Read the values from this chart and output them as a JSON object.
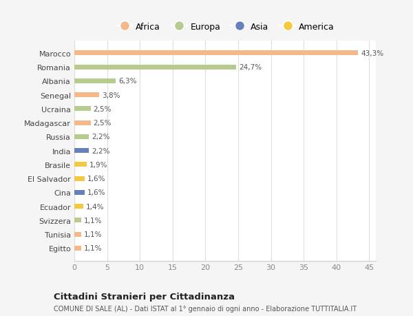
{
  "categories": [
    "Egitto",
    "Tunisia",
    "Svizzera",
    "Ecuador",
    "Cina",
    "El Salvador",
    "Brasile",
    "India",
    "Russia",
    "Madagascar",
    "Ucraina",
    "Senegal",
    "Albania",
    "Romania",
    "Marocco"
  ],
  "values": [
    1.1,
    1.1,
    1.1,
    1.4,
    1.6,
    1.6,
    1.9,
    2.2,
    2.2,
    2.5,
    2.5,
    3.8,
    6.3,
    24.7,
    43.3
  ],
  "colors": [
    "#f5b88a",
    "#f5b88a",
    "#b5cc8e",
    "#f5c842",
    "#6680bb",
    "#f5c842",
    "#f5c842",
    "#6680bb",
    "#b5cc8e",
    "#f5b88a",
    "#b5cc8e",
    "#f5b88a",
    "#b5cc8e",
    "#b5cc8e",
    "#f5b88a"
  ],
  "labels": [
    "1,1%",
    "1,1%",
    "1,1%",
    "1,4%",
    "1,6%",
    "1,6%",
    "1,9%",
    "2,2%",
    "2,2%",
    "2,5%",
    "2,5%",
    "3,8%",
    "6,3%",
    "24,7%",
    "43,3%"
  ],
  "legend_labels": [
    "Africa",
    "Europa",
    "Asia",
    "America"
  ],
  "legend_colors": [
    "#f5b88a",
    "#b5cc8e",
    "#6680bb",
    "#f5c842"
  ],
  "title": "Cittadini Stranieri per Cittadinanza",
  "subtitle": "COMUNE DI SALE (AL) - Dati ISTAT al 1° gennaio di ogni anno - Elaborazione TUTTITALIA.IT",
  "xlim": [
    0,
    46
  ],
  "xticks": [
    0,
    5,
    10,
    15,
    20,
    25,
    30,
    35,
    40,
    45
  ],
  "bg_color": "#f5f5f5",
  "plot_bg_color": "#ffffff"
}
